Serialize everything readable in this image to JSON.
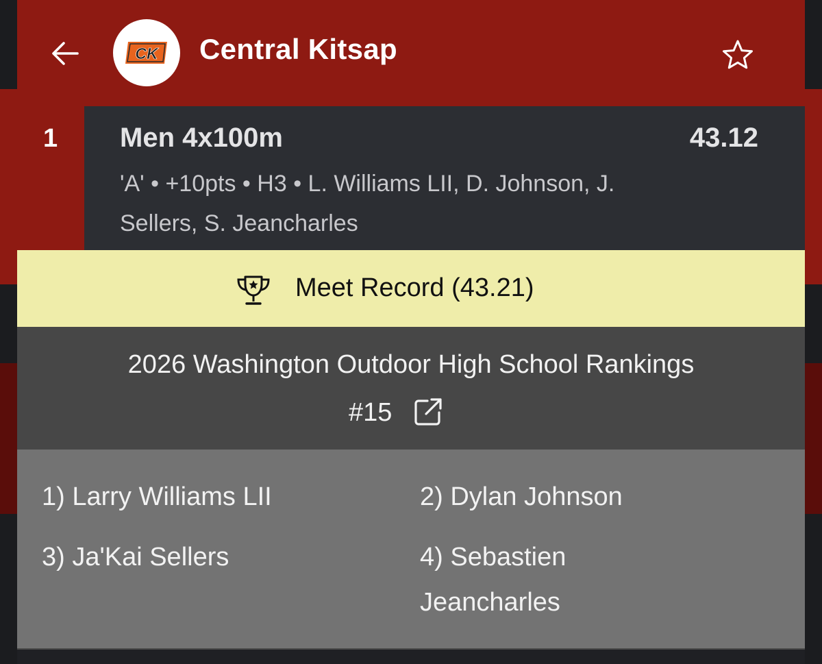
{
  "header": {
    "team_name": "Central Kitsap",
    "logo_text": "CK",
    "back_icon": "arrow-left-icon",
    "favorite_icon": "star-outline-icon"
  },
  "result": {
    "place": "1",
    "event": "Men 4x100m",
    "time": "43.12",
    "detail": "'A' • +10pts • H3 • L. Williams LII, D. Johnson, J. Sellers, S. Jeancharles"
  },
  "record": {
    "icon": "trophy-icon",
    "label": "Meet Record (43.21)"
  },
  "ranking": {
    "title": "2026 Washington Outdoor High School Rankings",
    "rank": "#15",
    "icon": "external-link-icon"
  },
  "athletes": [
    "1) Larry Williams LII",
    "2) Dylan Johnson",
    "3) Ja'Kai Sellers",
    "4) Sebastien Jeancharles"
  ],
  "colors": {
    "header_red": "#8e1a12",
    "card_dark": "#2c2e33",
    "record_yellow": "#efedaa",
    "rank_gray": "#474747",
    "athletes_gray": "#737373",
    "logo_orange": "#e8641e"
  }
}
